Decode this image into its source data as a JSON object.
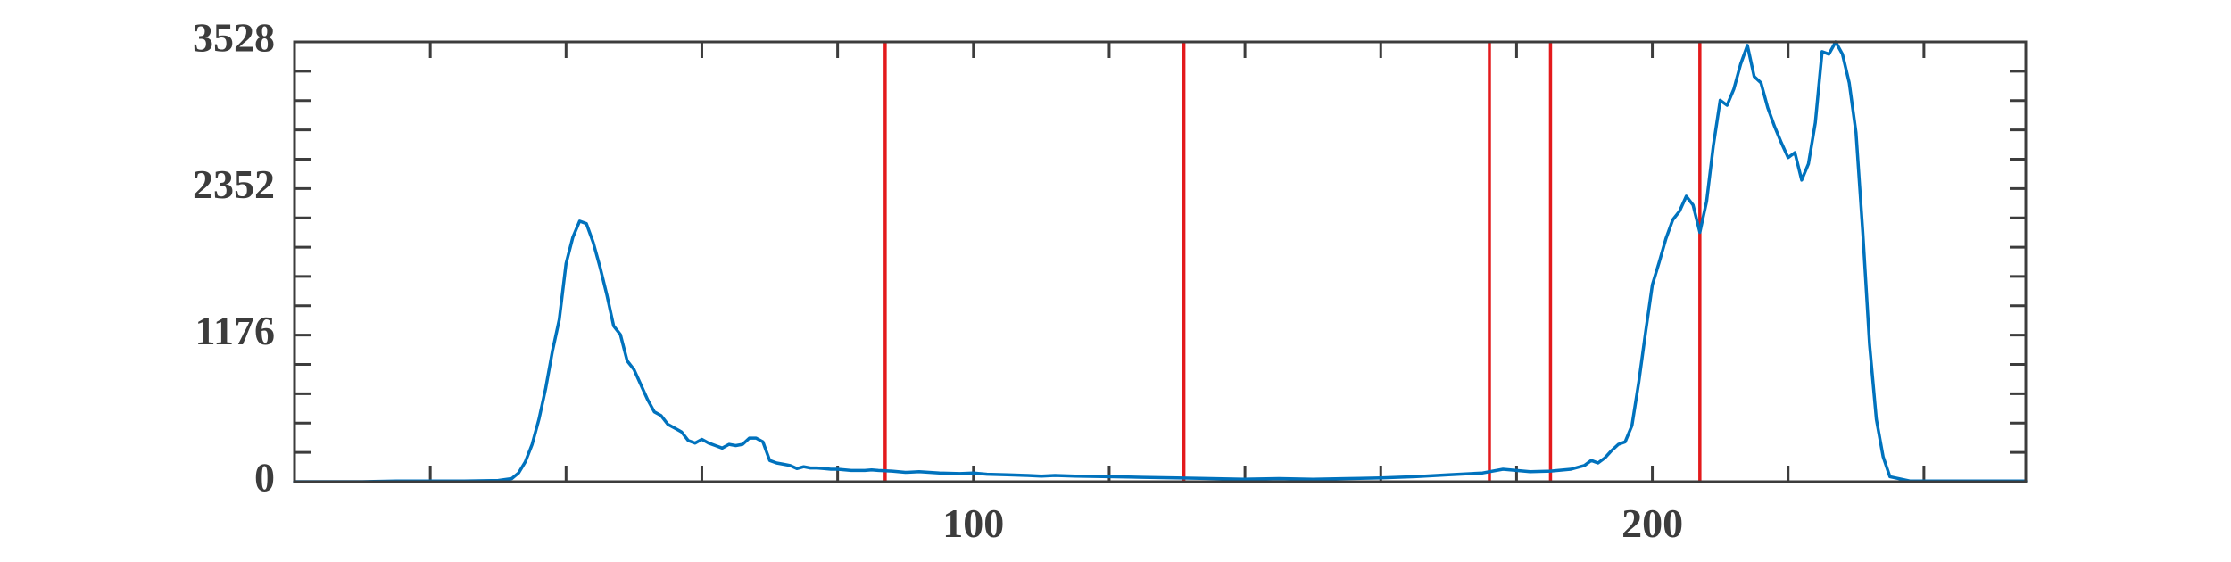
{
  "chart_data": {
    "type": "line",
    "title": "",
    "xlabel": "",
    "ylabel": "",
    "xlim": [
      0,
      255
    ],
    "ylim": [
      0,
      3528
    ],
    "x_ticks": [
      20,
      40,
      60,
      80,
      100,
      120,
      140,
      160,
      180,
      200,
      220,
      240
    ],
    "x_tick_labels": [
      {
        "value": 100,
        "label": "100"
      },
      {
        "value": 200,
        "label": "200"
      }
    ],
    "y_ticks": [
      0,
      235.2,
      470.4,
      705.6,
      940.8,
      1176,
      1411.2,
      1646.4,
      1881.6,
      2116.8,
      2352,
      2587.2,
      2822.4,
      3057.6,
      3292.8,
      3528
    ],
    "y_tick_labels": [
      {
        "value": 0,
        "label": "0"
      },
      {
        "value": 1176,
        "label": "1176"
      },
      {
        "value": 2352,
        "label": "2352"
      },
      {
        "value": 3528,
        "label": "3528"
      }
    ],
    "grid": false,
    "series": [
      {
        "color": "#0072BD",
        "x": [
          0,
          5,
          10,
          15,
          20,
          25,
          28,
          30,
          32,
          33,
          34,
          35,
          36,
          37,
          38,
          39,
          40,
          41,
          42,
          43,
          44,
          45,
          46,
          47,
          48,
          49,
          50,
          51,
          52,
          53,
          54,
          55,
          56,
          57,
          58,
          59,
          60,
          61,
          62,
          63,
          64,
          65,
          66,
          67,
          68,
          69,
          70,
          71,
          72,
          73,
          74,
          75,
          76,
          77,
          78,
          79,
          80,
          82,
          84,
          85,
          86,
          88,
          90,
          92,
          95,
          98,
          100,
          102,
          105,
          108,
          110,
          112,
          115,
          120,
          125,
          130,
          135,
          140,
          145,
          150,
          155,
          160,
          165,
          170,
          175,
          178,
          180,
          182,
          185,
          188,
          190,
          191,
          192,
          193,
          194,
          195,
          196,
          197,
          198,
          199,
          200,
          201,
          202,
          203,
          204,
          205,
          206,
          207,
          208,
          209,
          210,
          211,
          212,
          213,
          214,
          215,
          216,
          217,
          218,
          219,
          220,
          221,
          222,
          223,
          224,
          225,
          226,
          227,
          228,
          229,
          230,
          231,
          232,
          233,
          234,
          235,
          238,
          240,
          245,
          250,
          255
        ],
        "y": [
          0,
          0,
          0,
          5,
          5,
          5,
          8,
          10,
          25,
          70,
          160,
          300,
          500,
          750,
          1050,
          1300,
          1750,
          1960,
          2090,
          2070,
          1920,
          1720,
          1500,
          1250,
          1180,
          970,
          900,
          780,
          660,
          560,
          530,
          460,
          430,
          400,
          330,
          310,
          340,
          310,
          290,
          270,
          300,
          290,
          300,
          350,
          350,
          320,
          170,
          150,
          140,
          130,
          105,
          120,
          110,
          110,
          105,
          100,
          100,
          90,
          90,
          95,
          90,
          85,
          75,
          80,
          70,
          65,
          70,
          60,
          55,
          50,
          45,
          50,
          45,
          40,
          35,
          30,
          25,
          20,
          25,
          20,
          25,
          30,
          40,
          55,
          70,
          100,
          90,
          80,
          85,
          100,
          130,
          170,
          150,
          190,
          250,
          300,
          320,
          450,
          800,
          1200,
          1580,
          1760,
          1950,
          2100,
          2170,
          2290,
          2220,
          2000,
          2250,
          2700,
          3060,
          3020,
          3150,
          3350,
          3500,
          3250,
          3200,
          3000,
          2850,
          2720,
          2600,
          2640,
          2420,
          2550,
          2880,
          3450,
          3430,
          3528,
          3430,
          3200,
          2800,
          2000,
          1100,
          500,
          200,
          40,
          5,
          5,
          5,
          5,
          5
        ]
      }
    ],
    "vertical_markers": {
      "color": "#E31A1C",
      "x": [
        87,
        131,
        176,
        185,
        207
      ]
    }
  }
}
